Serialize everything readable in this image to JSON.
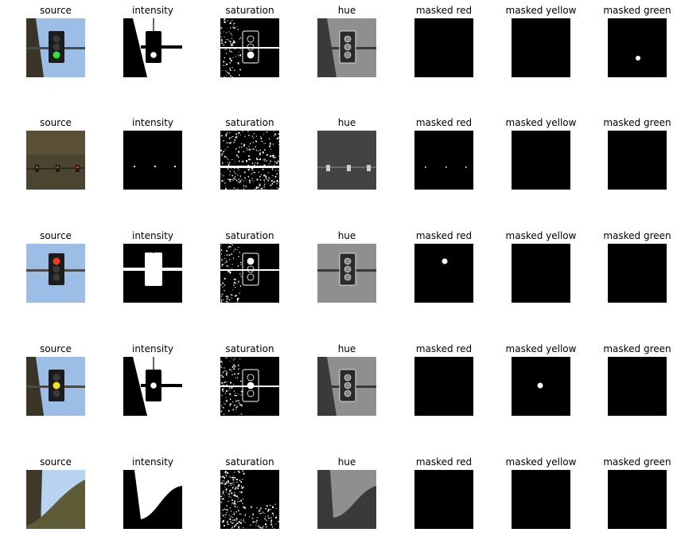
{
  "columns": [
    "source",
    "intensity",
    "saturation",
    "hue",
    "masked red",
    "masked yellow",
    "masked green"
  ],
  "rows": [
    {
      "name": "green light",
      "lit": "green"
    },
    {
      "name": "distant red lights",
      "lit": "red-distant"
    },
    {
      "name": "red light",
      "lit": "red"
    },
    {
      "name": "yellow light",
      "lit": "yellow"
    },
    {
      "name": "no light",
      "lit": "none"
    }
  ],
  "colors": {
    "sky": "#9bbde6",
    "sky_light": "#b8d4f0",
    "pole": "#3a3426",
    "housing": "#1c1c1c",
    "off_lamp": "#3a3a3a",
    "red_lamp": "#f23a2a",
    "yellow_lamp": "#f0e020",
    "green_lamp": "#30e040",
    "terrain": "#4a4430",
    "hue_gray": "#8f8f8f",
    "hue_dark": "#3a3a3a",
    "black": "#000000",
    "white": "#ffffff"
  }
}
